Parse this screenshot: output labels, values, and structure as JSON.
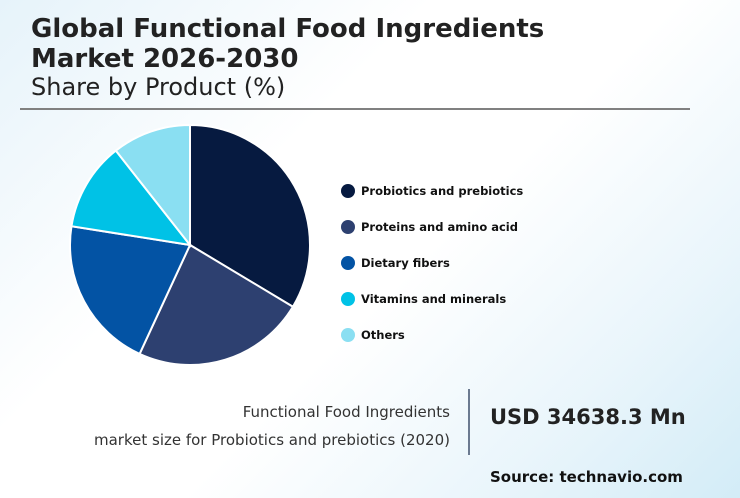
{
  "header": {
    "title_line1": "Global Functional Food Ingredients",
    "title_line2": "Market 2026-2030",
    "subtitle": "Share by Product (%)"
  },
  "chart_data": {
    "type": "pie",
    "title": "Global Functional Food Ingredients Market 2026-2030",
    "subtitle": "Share by Product (%)",
    "categories": [
      "Probiotics and prebiotics",
      "Proteins and amino acid",
      "Dietary fibers",
      "Vitamins and minerals",
      "Others"
    ],
    "values": [
      33.6,
      23.3,
      20.6,
      11.9,
      10.6
    ],
    "colors": [
      "#061a40",
      "#2d4070",
      "#0353a4",
      "#00c2e6",
      "#8adff2"
    ],
    "legend_position": "right",
    "start_angle": "12 o'clock, clockwise"
  },
  "legend": {
    "items": [
      {
        "label": "Probiotics and prebiotics",
        "color": "#061a40"
      },
      {
        "label": "Proteins and amino acid",
        "color": "#2d4070"
      },
      {
        "label": "Dietary fibers",
        "color": "#0353a4"
      },
      {
        "label": "Vitamins and minerals",
        "color": "#00c2e6"
      },
      {
        "label": "Others",
        "color": "#8adff2"
      }
    ]
  },
  "kpi": {
    "desc_line1": "Functional Food Ingredients",
    "desc_line2": "market size for Probiotics and prebiotics (2020)",
    "value": "USD 34638.3 Mn"
  },
  "footer": {
    "source": "Source: technavio.com"
  }
}
